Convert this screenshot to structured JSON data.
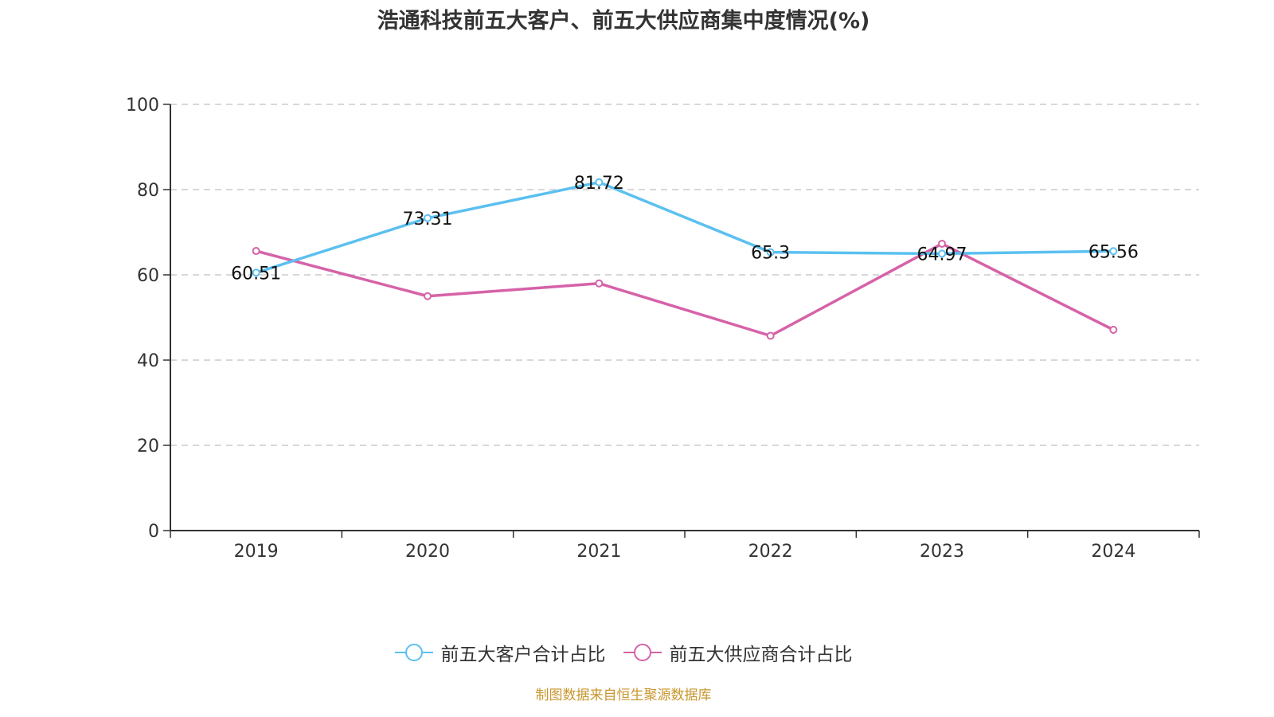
{
  "footer": "制图数据来自恒生聚源数据库",
  "chart_data": {
    "type": "line",
    "title": "浩通科技前五大客户、前五大供应商集中度情况(%)",
    "xlabel": "",
    "ylabel": "",
    "categories": [
      "2019",
      "2020",
      "2021",
      "2022",
      "2023",
      "2024"
    ],
    "ylim": [
      0,
      100
    ],
    "yticks": [
      "0",
      "20",
      "40",
      "60",
      "80",
      "100"
    ],
    "grid": "horizontal-dashed",
    "legend_position": "bottom",
    "series": [
      {
        "name": "前五大客户合计占比",
        "color": "#5bc0f0",
        "values": [
          60.51,
          73.31,
          81.72,
          65.3,
          64.97,
          65.56
        ],
        "labels": [
          "60.51",
          "73.31",
          "81.72",
          "65.3",
          "64.97",
          "65.56"
        ],
        "show_labels": true
      },
      {
        "name": "前五大供应商合计占比",
        "color": "#d662a8",
        "values": [
          65.6,
          55.0,
          58.0,
          45.7,
          67.3,
          47.1
        ],
        "show_labels": false
      }
    ]
  }
}
